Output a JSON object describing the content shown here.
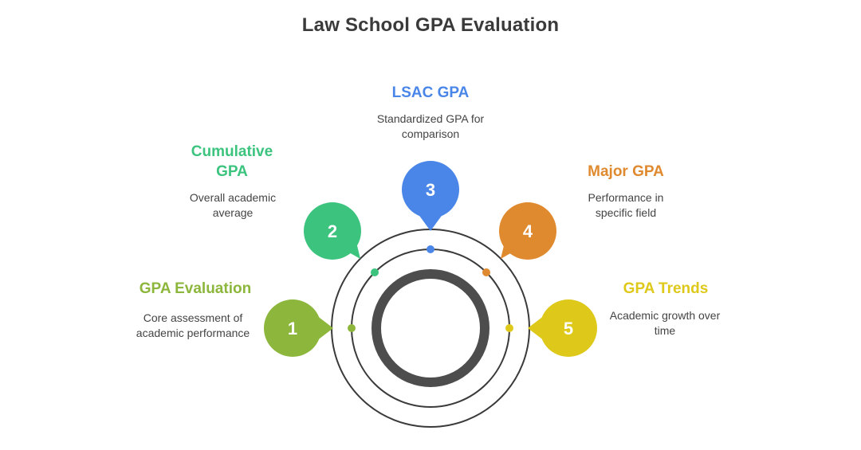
{
  "title": "Law School GPA Evaluation",
  "colors": {
    "step1": "#8db63c",
    "step2": "#3cc47f",
    "step3": "#4a86e8",
    "step4": "#e08a30",
    "step5": "#dec91a",
    "ring": "#4d4d4d",
    "thin_ring": "#3a3a3a"
  },
  "steps": [
    {
      "number": "1",
      "label": "GPA Evaluation",
      "description": "Core assessment of academic performance"
    },
    {
      "number": "2",
      "label": "Cumulative GPA",
      "description": "Overall academic average"
    },
    {
      "number": "3",
      "label": "LSAC GPA",
      "description": "Standardized GPA for comparison"
    },
    {
      "number": "4",
      "label": "Major GPA",
      "description": "Performance in specific field"
    },
    {
      "number": "5",
      "label": "GPA Trends",
      "description": "Academic growth over time"
    }
  ]
}
